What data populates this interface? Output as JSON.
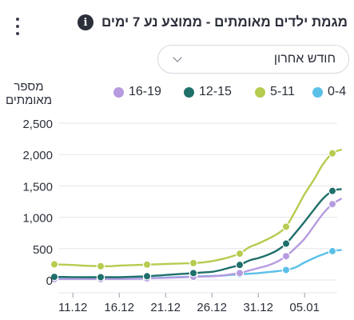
{
  "header": {
    "title": "מגמת ילדים מאומתים - ממוצע נע 7 ימים",
    "info_icon": "info-icon",
    "menu_icon": "kebab-menu-icon"
  },
  "filter": {
    "selected": "חודש אחרון"
  },
  "colors": {
    "0-4": "#5bc0e8",
    "5-11": "#b5cc4f",
    "12-15": "#1f6f6a",
    "16-19": "#b69be0",
    "grid": "#e3e6ec",
    "text": "#2b2f3a"
  },
  "chart_data": {
    "type": "line",
    "title": "מגמת ילדים מאומתים - ממוצע נע 7 ימים",
    "ylabel": "מספר מאומתים",
    "xlabel": "",
    "ylim": [
      0,
      2500
    ],
    "yticks": [
      0,
      500,
      1000,
      1500,
      2000,
      2500
    ],
    "ytick_labels": [
      "0",
      "500",
      "1,000",
      "1,500",
      "2,000",
      "2,500"
    ],
    "x": [
      "09.12",
      "10.12",
      "11.12",
      "12.12",
      "13.12",
      "14.12",
      "15.12",
      "16.12",
      "17.12",
      "18.12",
      "19.12",
      "20.12",
      "21.12",
      "22.12",
      "23.12",
      "24.12",
      "25.12",
      "26.12",
      "27.12",
      "28.12",
      "29.12",
      "30.12",
      "31.12",
      "01.01",
      "02.01",
      "03.01",
      "04.01",
      "05.01",
      "06.01",
      "07.01",
      "08.01",
      "09.01"
    ],
    "xtick_labels": [
      "11.12",
      "16.12",
      "21.12",
      "26.12",
      "31.12",
      "05.01"
    ],
    "marker_every": 5,
    "grid": true,
    "legend_position": "top",
    "series": [
      {
        "name": "0-4",
        "values": [
          20,
          20,
          20,
          20,
          20,
          20,
          20,
          25,
          25,
          30,
          30,
          35,
          40,
          45,
          50,
          55,
          60,
          65,
          70,
          80,
          90,
          100,
          110,
          125,
          140,
          160,
          200,
          280,
          350,
          410,
          460,
          480
        ]
      },
      {
        "name": "5-11",
        "values": [
          250,
          245,
          240,
          230,
          225,
          220,
          220,
          230,
          235,
          240,
          245,
          250,
          255,
          260,
          265,
          270,
          280,
          300,
          330,
          370,
          420,
          520,
          580,
          650,
          730,
          850,
          1100,
          1370,
          1600,
          1850,
          2020,
          2080
        ]
      },
      {
        "name": "12-15",
        "values": [
          50,
          48,
          46,
          45,
          45,
          45,
          45,
          45,
          50,
          55,
          60,
          70,
          80,
          90,
          100,
          110,
          120,
          130,
          160,
          200,
          240,
          310,
          350,
          400,
          470,
          580,
          750,
          930,
          1120,
          1300,
          1420,
          1450
        ]
      },
      {
        "name": "16-19",
        "values": [
          15,
          15,
          15,
          15,
          15,
          15,
          15,
          15,
          18,
          20,
          25,
          30,
          35,
          40,
          45,
          50,
          55,
          60,
          70,
          90,
          110,
          150,
          190,
          230,
          290,
          380,
          510,
          660,
          860,
          1060,
          1210,
          1300
        ]
      }
    ]
  }
}
